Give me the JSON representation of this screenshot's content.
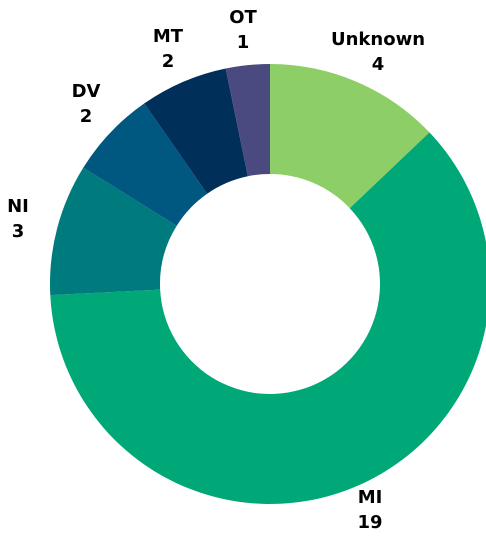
{
  "chart_data": {
    "type": "donut",
    "categories": [
      "Unknown",
      "MI",
      "NI",
      "DV",
      "MT",
      "OT"
    ],
    "values": [
      4,
      19,
      3,
      2,
      2,
      1
    ],
    "colors": [
      "#8dcf66",
      "#00a878",
      "#007b7d",
      "#005780",
      "#00305a",
      "#4b4a80"
    ]
  }
}
